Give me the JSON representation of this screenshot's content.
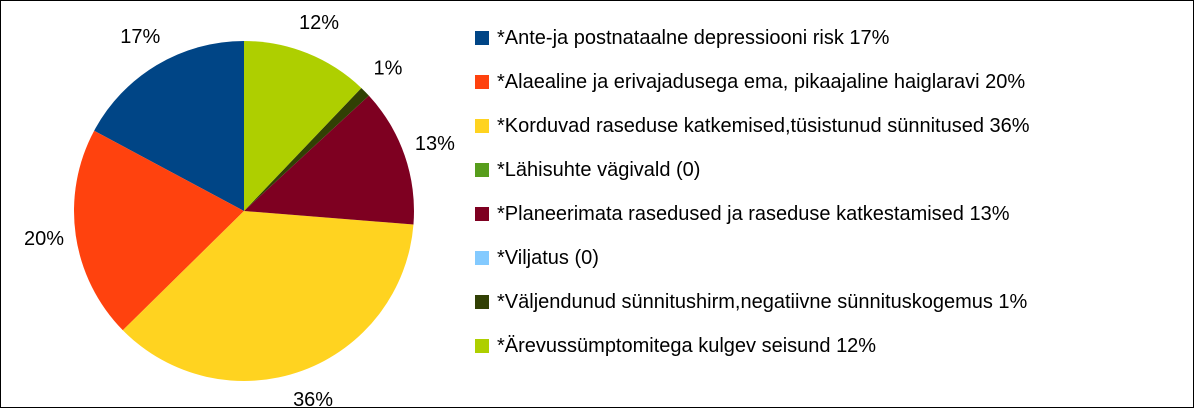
{
  "chart_data": {
    "type": "pie",
    "categories": [
      "*Ante-ja postnataalne depressiooni risk 17%",
      "*Alaealine ja erivajadusega ema, pikaajaline haiglaravi 20%",
      "*Korduvad raseduse katkemised,tüsistunud sünnitused 36%",
      "*Lähisuhte vägivald (0)",
      "*Planeerimata rasedused ja raseduse katkestamised 13%",
      "*Viljatus (0)",
      "*Väljendunud sünnitushirm,negatiivne sünnituskogemus 1%",
      "*Ärevussümptomitega kulgev seisund 12%"
    ],
    "values": [
      17,
      20,
      36,
      0,
      13,
      0,
      1,
      12
    ],
    "value_labels": [
      "17%",
      "20%",
      "36%",
      null,
      "13%",
      null,
      "1%",
      "12%"
    ],
    "colors": [
      "#004586",
      "#ff420e",
      "#ffd320",
      "#579d1c",
      "#7e0021",
      "#83caff",
      "#314004",
      "#aecf00"
    ]
  }
}
